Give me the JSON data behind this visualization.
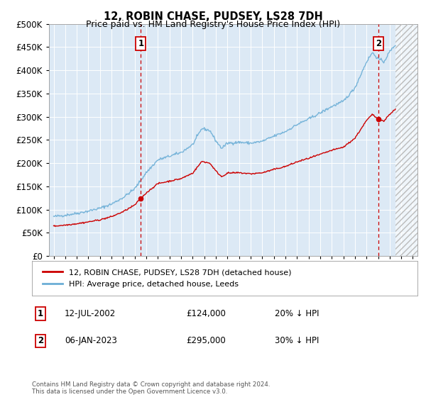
{
  "title": "12, ROBIN CHASE, PUDSEY, LS28 7DH",
  "subtitle": "Price paid vs. HM Land Registry's House Price Index (HPI)",
  "ytick_values": [
    0,
    50000,
    100000,
    150000,
    200000,
    250000,
    300000,
    350000,
    400000,
    450000,
    500000
  ],
  "xlim_start": 1994.6,
  "xlim_end": 2026.4,
  "ylim": [
    0,
    500000
  ],
  "background_color": "#dce9f5",
  "hpi_line_color": "#6baed6",
  "price_line_color": "#cc0000",
  "sale1_date": 2002.53,
  "sale1_price": 124000,
  "sale2_date": 2023.02,
  "sale2_price": 295000,
  "legend_label1": "12, ROBIN CHASE, PUDSEY, LS28 7DH (detached house)",
  "legend_label2": "HPI: Average price, detached house, Leeds",
  "footer": "Contains HM Land Registry data © Crown copyright and database right 2024.\nThis data is licensed under the Open Government Licence v3.0.",
  "future_start": 2024.5
}
